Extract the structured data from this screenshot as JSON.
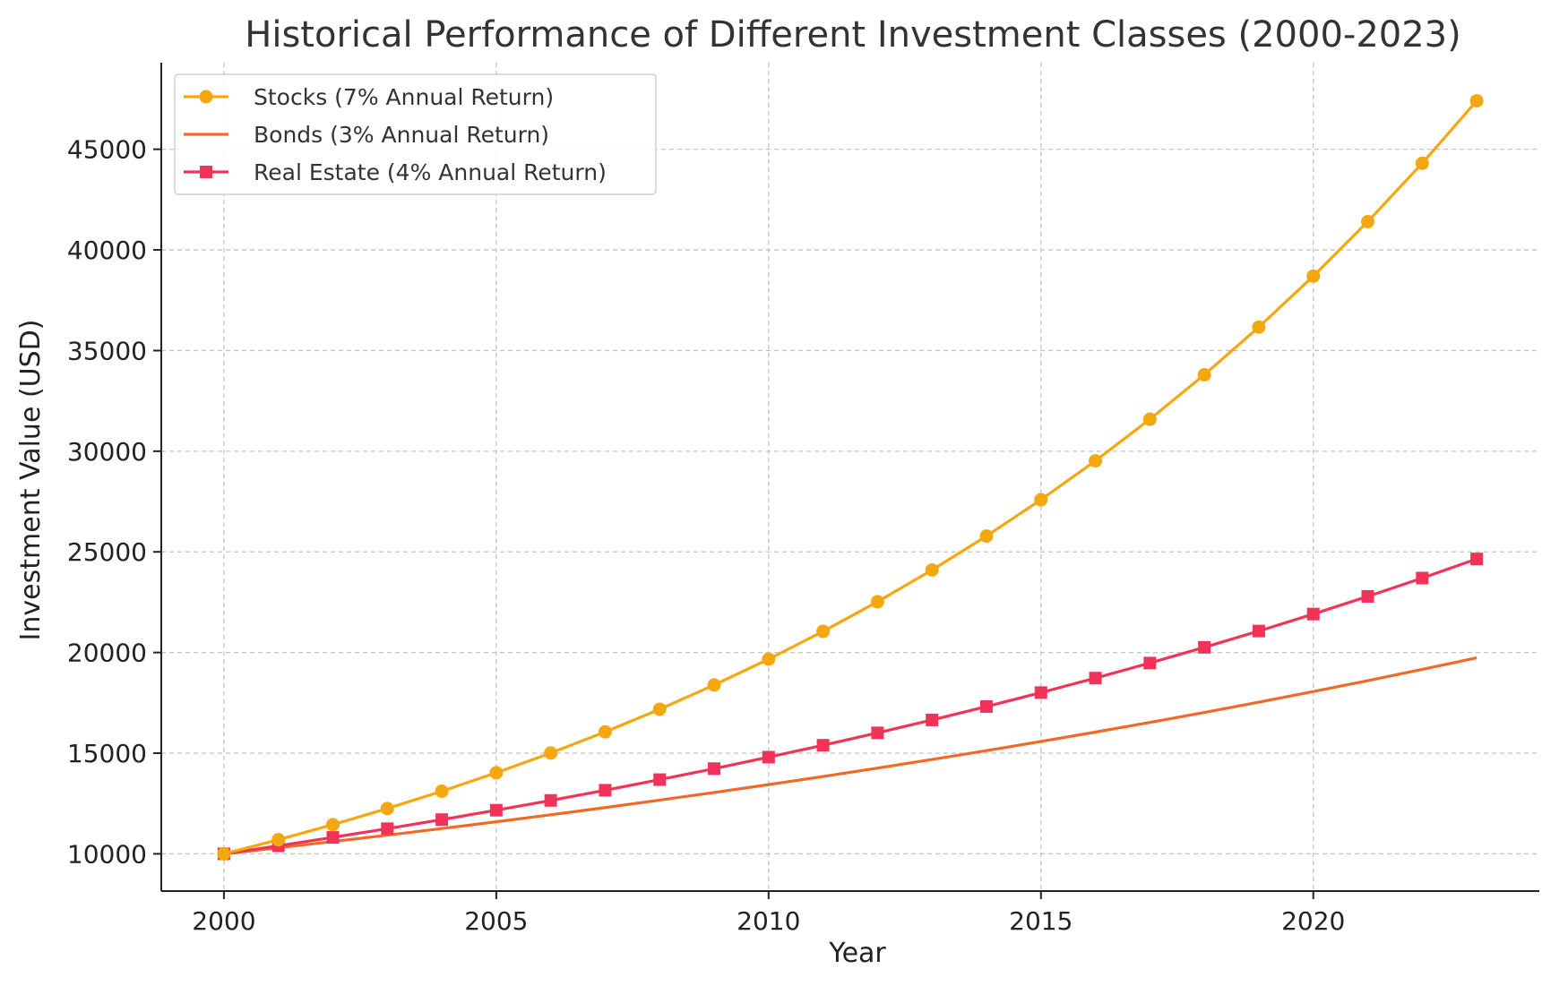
{
  "chart_data": {
    "type": "line",
    "title": "Historical Performance of Different Investment Classes (2000-2023)",
    "xlabel": "Year",
    "ylabel": "Investment Value (USD)",
    "xlim": [
      1998.85,
      2024.15
    ],
    "ylim": [
      8150,
      49300
    ],
    "x_ticks": [
      2000,
      2005,
      2010,
      2015,
      2020
    ],
    "y_ticks": [
      10000,
      15000,
      20000,
      25000,
      30000,
      35000,
      40000,
      45000
    ],
    "grid": true,
    "legend_position": "top-left",
    "x": [
      2000,
      2001,
      2002,
      2003,
      2004,
      2005,
      2006,
      2007,
      2008,
      2009,
      2010,
      2011,
      2012,
      2013,
      2014,
      2015,
      2016,
      2017,
      2018,
      2019,
      2020,
      2021,
      2022,
      2023
    ],
    "series": [
      {
        "name": "Stocks (7% Annual Return)",
        "color": "#f5a70f",
        "marker": "circle",
        "values": [
          10000,
          10700,
          11449,
          12250,
          13108,
          14026,
          15007,
          16058,
          17182,
          18385,
          19672,
          21049,
          22522,
          24098,
          25785,
          27590,
          29522,
          31588,
          33799,
          36165,
          38697,
          41406,
          44304,
          47405
        ]
      },
      {
        "name": "Bonds (3% Annual Return)",
        "color": "#ee6a25",
        "marker": "none",
        "values": [
          10000,
          10300,
          10609,
          10927,
          11255,
          11593,
          11941,
          12299,
          12668,
          13048,
          13439,
          13842,
          14258,
          14685,
          15126,
          15580,
          16047,
          16528,
          17024,
          17535,
          18061,
          18603,
          19161,
          19736
        ]
      },
      {
        "name": "Real Estate (4% Annual Return)",
        "color": "#f23359",
        "marker": "square",
        "values": [
          10000,
          10400,
          10816,
          11249,
          11699,
          12167,
          12653,
          13159,
          13686,
          14233,
          14802,
          15395,
          16010,
          16651,
          17317,
          18009,
          18730,
          19479,
          20258,
          21068,
          21911,
          22788,
          23699,
          24647
        ]
      }
    ]
  }
}
